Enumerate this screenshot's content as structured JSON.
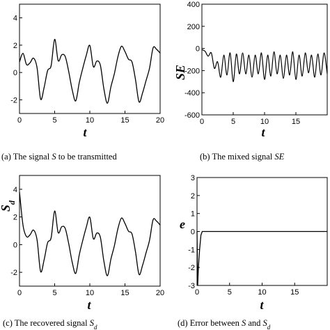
{
  "panels": [
    {
      "id": "a",
      "caption_prefix": "(a) The signal ",
      "caption_var": "S",
      "caption_suffix": " to be transmitted",
      "xlabel": "t",
      "ylabel": "",
      "xticks": [
        "0",
        "5",
        "10",
        "15",
        "20"
      ],
      "yticks": [
        "-2",
        "0",
        "2",
        "4"
      ]
    },
    {
      "id": "b",
      "caption_prefix": "(b) The mixed signal ",
      "caption_var": "SE",
      "caption_suffix": "",
      "xlabel": "t",
      "ylabel": "SE",
      "xticks": [
        "0",
        "5",
        "10",
        "15"
      ],
      "yticks": [
        "-600",
        "-400",
        "-200",
        "0",
        "200",
        "400"
      ]
    },
    {
      "id": "c",
      "caption_prefix": "(c) The recovered signal ",
      "caption_var": "S",
      "caption_sub": "d",
      "xlabel": "t",
      "ylabel": "S",
      "ylabel_sub": "d",
      "xticks": [
        "0",
        "5",
        "10",
        "15",
        "20"
      ],
      "yticks": [
        "-2",
        "0",
        "2",
        "4"
      ]
    },
    {
      "id": "d",
      "caption_prefix": "(d) Error between ",
      "caption_var": "S",
      "caption_mid": " and ",
      "caption_var2": "S",
      "caption_sub": "d",
      "xlabel": "t",
      "ylabel": "e",
      "xticks": [
        "0",
        "5",
        "10",
        "15"
      ],
      "yticks": [
        "-3",
        "-2",
        "-1",
        "0",
        "1",
        "2",
        "3"
      ]
    }
  ],
  "chart_data": [
    {
      "panel": "a",
      "type": "line",
      "xlim": [
        0,
        20
      ],
      "ylim": [
        -3,
        5
      ],
      "series": [
        {
          "x": [
            0,
            0.5,
            1.0,
            1.5,
            2.0,
            2.5,
            3.0,
            3.5,
            4.0,
            4.5,
            5.0,
            5.5,
            6.0,
            6.5,
            7.0,
            7.5,
            8.0,
            8.5,
            9.0,
            9.5,
            10.0,
            10.5,
            11.0,
            11.5,
            12.0,
            12.5,
            13.0,
            13.5,
            14.0,
            14.5,
            15.0,
            15.5,
            16.0,
            16.5,
            17.0,
            17.5,
            18.0,
            18.5,
            19.0,
            19.5,
            20.0
          ],
          "y": [
            0.77,
            1.4,
            0.58,
            0.71,
            1.05,
            0.34,
            -1.94,
            -1.1,
            0.14,
            0.5,
            2.43,
            0.87,
            1.29,
            1.17,
            0.07,
            -1.28,
            -2.08,
            -0.74,
            0.31,
            1.26,
            1.98,
            0.43,
            0.84,
            0.53,
            -1.19,
            -2.25,
            -1.05,
            -0.07,
            1.16,
            1.92,
            1.53,
            0.97,
            0.77,
            -0.53,
            -2.15,
            -1.5,
            -0.59,
            0.33,
            1.8,
            1.69,
            1.42
          ]
        }
      ]
    },
    {
      "panel": "b",
      "type": "line",
      "xlim": [
        0,
        20
      ],
      "ylim": [
        -600,
        400
      ],
      "series": [
        {
          "x": [
            0,
            0.5,
            1.0,
            1.5,
            2.0,
            2.5,
            3.0,
            3.5,
            4.0,
            4.5,
            5.0,
            5.5,
            6.0,
            6.5,
            7.0,
            7.5,
            8.0,
            8.5,
            9.0,
            9.5,
            10.0,
            10.5,
            11.0,
            11.5,
            12.0,
            12.5,
            13.0,
            13.5,
            14.0,
            14.5,
            15.0,
            15.5,
            16.0,
            16.5,
            17.0,
            17.5,
            18.0,
            18.5,
            19.0,
            19.5,
            20.0
          ],
          "y": [
            -10,
            -25,
            -70,
            -40,
            -180,
            -120,
            -260,
            -60,
            -240,
            -40,
            -300,
            -50,
            -230,
            -40,
            -230,
            -60,
            -260,
            -60,
            -230,
            -40,
            -280,
            -60,
            -250,
            -30,
            -230,
            -60,
            -270,
            -60,
            -240,
            -30,
            -280,
            -60,
            -250,
            -40,
            -220,
            -60,
            -260,
            -50,
            -240,
            -40,
            -230
          ]
        }
      ]
    },
    {
      "panel": "c",
      "type": "line",
      "xlim": [
        0,
        20
      ],
      "ylim": [
        -3,
        5
      ],
      "series": [
        {
          "x": [
            0,
            0.5,
            1.0,
            1.5,
            2.0,
            2.5,
            3.0,
            3.5,
            4.0,
            4.5,
            5.0,
            5.5,
            6.0,
            6.5,
            7.0,
            7.5,
            8.0,
            8.5,
            9.0,
            9.5,
            10.0,
            10.5,
            11.0,
            11.5,
            12.0,
            12.5,
            13.0,
            13.5,
            14.0,
            14.5,
            15.0,
            15.5,
            16.0,
            16.5,
            17.0,
            17.5,
            18.0,
            18.5,
            19.0,
            19.5,
            20.0
          ],
          "y": [
            3.8,
            1.4,
            0.58,
            0.71,
            1.05,
            0.34,
            -1.94,
            -1.1,
            0.14,
            0.5,
            2.43,
            0.87,
            1.29,
            1.17,
            0.07,
            -1.28,
            -2.08,
            -0.74,
            0.31,
            1.26,
            1.98,
            0.43,
            0.84,
            0.53,
            -1.19,
            -2.25,
            -1.05,
            -0.07,
            1.16,
            1.92,
            1.53,
            0.97,
            0.77,
            -0.53,
            -2.15,
            -1.5,
            -0.59,
            0.33,
            1.8,
            1.69,
            1.42
          ]
        }
      ]
    },
    {
      "panel": "d",
      "type": "line",
      "xlim": [
        0,
        20
      ],
      "ylim": [
        -3,
        3
      ],
      "series": [
        {
          "x": [
            0,
            0.1,
            0.2,
            0.3,
            0.4,
            0.5,
            0.6,
            0.8,
            1.0,
            2.0,
            5.0,
            10.0,
            15.0,
            20.0
          ],
          "y": [
            0.0,
            -3.0,
            -2.1,
            -1.5,
            -1.0,
            -0.6,
            -0.2,
            0.0,
            0.0,
            0.0,
            0.0,
            0.0,
            0.0,
            0.0
          ]
        }
      ]
    }
  ]
}
